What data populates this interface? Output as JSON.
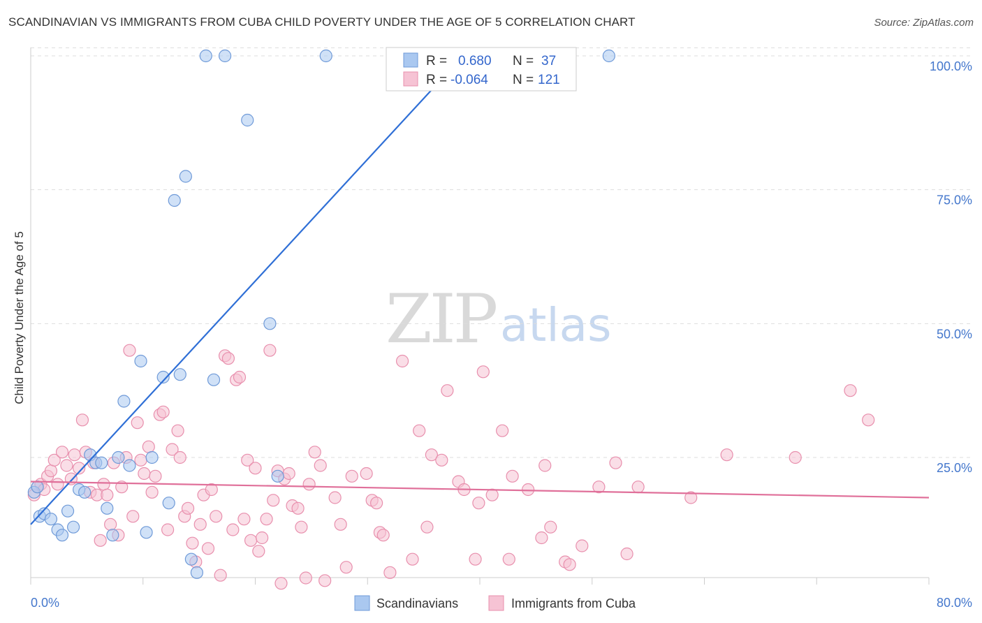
{
  "title": "SCANDINAVIAN VS IMMIGRANTS FROM CUBA CHILD POVERTY UNDER THE AGE OF 5 CORRELATION CHART",
  "source": "Source: ZipAtlas.com",
  "watermark": {
    "part1": "ZIP",
    "part2": "atlas"
  },
  "colors": {
    "blue_fill": "#aac8f0",
    "blue_stroke": "#6f9ad8",
    "blue_line": "#2f6fd6",
    "pink_fill": "#f6c3d4",
    "pink_stroke": "#e88fad",
    "pink_line": "#e0709a",
    "axis_text": "#4477cc",
    "grid": "#dddddd"
  },
  "legend": {
    "rows": [
      {
        "r_label": "R =",
        "r_value": "0.680",
        "n_label": "N =",
        "n_value": "37"
      },
      {
        "r_label": "R =",
        "r_value": "-0.064",
        "n_label": "N =",
        "n_value": "121"
      }
    ]
  },
  "chart_data": {
    "type": "scatter",
    "title": "SCANDINAVIAN VS IMMIGRANTS FROM CUBA CHILD POVERTY UNDER THE AGE OF 5 CORRELATION CHART",
    "xlabel": "",
    "ylabel": "Child Poverty Under the Age of 5",
    "xlim": [
      0,
      80
    ],
    "ylim": [
      0,
      103
    ],
    "x_tick_labels": [
      "0.0%",
      "80.0%"
    ],
    "y_ticks": [
      25,
      50,
      75,
      100
    ],
    "y_tick_labels": [
      "25.0%",
      "50.0%",
      "75.0%",
      "100.0%"
    ],
    "grid": true,
    "legend_position": "top-center",
    "series": [
      {
        "name": "Scandinavians",
        "color": "#aac8f0",
        "r": 0.68,
        "n": 37,
        "trend": {
          "x": [
            0,
            38.5
          ],
          "y": [
            12.5,
            100
          ]
        },
        "points": [
          [
            0.3,
            18.5
          ],
          [
            0.6,
            19.5
          ],
          [
            0.8,
            14.0
          ],
          [
            1.2,
            14.5
          ],
          [
            1.8,
            13.5
          ],
          [
            2.4,
            11.5
          ],
          [
            2.8,
            10.5
          ],
          [
            3.3,
            15.0
          ],
          [
            3.8,
            12.0
          ],
          [
            4.3,
            19.0
          ],
          [
            4.8,
            18.5
          ],
          [
            5.3,
            25.5
          ],
          [
            5.8,
            24.0
          ],
          [
            6.3,
            24.0
          ],
          [
            6.8,
            15.5
          ],
          [
            7.3,
            10.5
          ],
          [
            7.8,
            25.0
          ],
          [
            8.3,
            35.5
          ],
          [
            8.8,
            23.5
          ],
          [
            9.8,
            43.0
          ],
          [
            10.3,
            11.0
          ],
          [
            10.8,
            25.0
          ],
          [
            11.8,
            40.0
          ],
          [
            12.3,
            16.5
          ],
          [
            12.8,
            73.0
          ],
          [
            13.3,
            40.5
          ],
          [
            13.8,
            77.5
          ],
          [
            14.3,
            6.0
          ],
          [
            14.8,
            3.5
          ],
          [
            15.6,
            100.0
          ],
          [
            16.3,
            39.5
          ],
          [
            17.3,
            100.0
          ],
          [
            19.3,
            88.0
          ],
          [
            21.3,
            50.0
          ],
          [
            22.0,
            21.5
          ],
          [
            26.3,
            100.0
          ],
          [
            51.5,
            100.0
          ]
        ]
      },
      {
        "name": "Immigrants from Cuba",
        "color": "#f6c3d4",
        "r": -0.064,
        "n": 121,
        "trend": {
          "x": [
            0,
            80
          ],
          "y": [
            20.5,
            17.5
          ]
        },
        "points": [
          [
            0.3,
            18.0
          ],
          [
            0.6,
            19.5
          ],
          [
            0.9,
            20.0
          ],
          [
            1.2,
            19.0
          ],
          [
            1.5,
            21.5
          ],
          [
            1.8,
            22.5
          ],
          [
            2.1,
            24.5
          ],
          [
            2.4,
            20.0
          ],
          [
            2.8,
            26.0
          ],
          [
            3.2,
            23.5
          ],
          [
            3.6,
            21.0
          ],
          [
            3.9,
            25.5
          ],
          [
            4.3,
            23.0
          ],
          [
            4.6,
            32.0
          ],
          [
            4.9,
            26.0
          ],
          [
            5.3,
            18.5
          ],
          [
            5.6,
            24.0
          ],
          [
            5.9,
            18.0
          ],
          [
            6.2,
            9.5
          ],
          [
            6.5,
            20.0
          ],
          [
            6.8,
            18.0
          ],
          [
            7.1,
            12.5
          ],
          [
            7.4,
            24.0
          ],
          [
            7.8,
            10.5
          ],
          [
            8.1,
            19.5
          ],
          [
            8.5,
            25.0
          ],
          [
            8.8,
            45.0
          ],
          [
            9.1,
            14.0
          ],
          [
            9.5,
            31.5
          ],
          [
            9.8,
            24.5
          ],
          [
            10.1,
            22.0
          ],
          [
            10.5,
            27.0
          ],
          [
            10.8,
            18.5
          ],
          [
            11.1,
            21.5
          ],
          [
            11.5,
            33.0
          ],
          [
            11.8,
            33.5
          ],
          [
            12.2,
            11.5
          ],
          [
            12.6,
            26.5
          ],
          [
            13.1,
            30.0
          ],
          [
            13.3,
            25.0
          ],
          [
            13.7,
            14.0
          ],
          [
            14.0,
            15.5
          ],
          [
            14.4,
            9.0
          ],
          [
            14.7,
            5.5
          ],
          [
            15.1,
            12.5
          ],
          [
            15.4,
            18.0
          ],
          [
            15.8,
            8.0
          ],
          [
            16.1,
            19.0
          ],
          [
            16.5,
            14.0
          ],
          [
            16.9,
            3.0
          ],
          [
            17.3,
            44.0
          ],
          [
            17.6,
            43.5
          ],
          [
            18.0,
            11.5
          ],
          [
            18.3,
            39.5
          ],
          [
            18.6,
            40.0
          ],
          [
            19.0,
            13.5
          ],
          [
            19.3,
            24.5
          ],
          [
            19.6,
            9.5
          ],
          [
            20.0,
            23.0
          ],
          [
            20.3,
            7.5
          ],
          [
            20.6,
            10.0
          ],
          [
            21.0,
            13.5
          ],
          [
            21.3,
            45.0
          ],
          [
            21.6,
            17.0
          ],
          [
            22.0,
            22.5
          ],
          [
            22.3,
            1.5
          ],
          [
            22.6,
            21.0
          ],
          [
            23.0,
            22.0
          ],
          [
            23.3,
            16.0
          ],
          [
            23.8,
            15.5
          ],
          [
            24.1,
            12.0
          ],
          [
            24.5,
            2.5
          ],
          [
            24.8,
            20.0
          ],
          [
            25.3,
            26.0
          ],
          [
            25.8,
            23.5
          ],
          [
            26.2,
            2.0
          ],
          [
            27.1,
            17.5
          ],
          [
            27.6,
            12.5
          ],
          [
            28.1,
            4.5
          ],
          [
            28.6,
            21.5
          ],
          [
            29.9,
            22.0
          ],
          [
            30.4,
            17.0
          ],
          [
            30.8,
            16.5
          ],
          [
            31.1,
            11.0
          ],
          [
            31.4,
            10.5
          ],
          [
            32.0,
            3.5
          ],
          [
            33.1,
            43.0
          ],
          [
            34.0,
            6.0
          ],
          [
            34.6,
            30.0
          ],
          [
            35.3,
            12.0
          ],
          [
            35.7,
            25.5
          ],
          [
            36.6,
            24.5
          ],
          [
            37.1,
            37.5
          ],
          [
            38.1,
            20.5
          ],
          [
            38.6,
            19.0
          ],
          [
            39.6,
            6.0
          ],
          [
            39.9,
            16.5
          ],
          [
            40.3,
            41.0
          ],
          [
            41.1,
            18.0
          ],
          [
            42.0,
            30.0
          ],
          [
            42.6,
            6.0
          ],
          [
            42.9,
            21.5
          ],
          [
            44.3,
            19.0
          ],
          [
            45.5,
            10.0
          ],
          [
            45.8,
            23.5
          ],
          [
            46.3,
            12.0
          ],
          [
            47.6,
            5.5
          ],
          [
            48.0,
            5.0
          ],
          [
            49.1,
            8.5
          ],
          [
            50.6,
            19.5
          ],
          [
            52.1,
            24.0
          ],
          [
            53.1,
            7.0
          ],
          [
            54.1,
            19.5
          ],
          [
            58.8,
            17.5
          ],
          [
            62.0,
            25.5
          ],
          [
            68.1,
            25.0
          ],
          [
            73.0,
            37.5
          ],
          [
            74.6,
            32.0
          ]
        ]
      }
    ]
  },
  "bottom_legend": {
    "items": [
      {
        "label": "Scandinavians"
      },
      {
        "label": "Immigrants from Cuba"
      }
    ]
  }
}
